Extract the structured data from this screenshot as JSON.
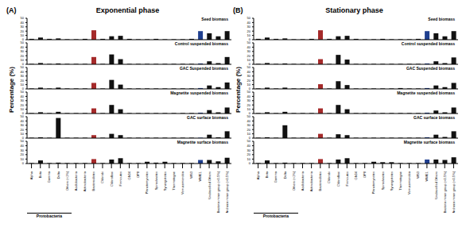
{
  "chart_data": [
    {
      "type": "bar",
      "label": "(A)",
      "title": "Exponential phase",
      "ylabel": "Percentage (%)",
      "annotation": "Protobacteria",
      "categories": [
        "Alpha",
        "Beta",
        "Gamma",
        "Delta",
        "Others (<1%)",
        "Acidobacteria",
        "Actinobacteria",
        "Bacteroidetes",
        "Chlorobi",
        "Chloroflexi",
        "Firmicutes",
        "GN04",
        "OP8",
        "Planctomycetes",
        "Spirochaetes",
        "Synergistetes",
        "Thermotogae",
        "Verrucomicrobia",
        "WS3",
        "WWE1",
        "Unclassified Others",
        "Bacteria minor group (<0.5%)",
        "Archaea minor group (<0.5%)"
      ],
      "colors": [
        "#111111",
        "#111111",
        "#111111",
        "#111111",
        "#111111",
        "#111111",
        "#111111",
        "#a52a2a",
        "#111111",
        "#111111",
        "#111111",
        "#111111",
        "#111111",
        "#111111",
        "#111111",
        "#111111",
        "#111111",
        "#111111",
        "#111111",
        "#1f3f8f",
        "#111111",
        "#111111",
        "#111111"
      ],
      "ylim": [
        0,
        50
      ],
      "yticks": [
        0,
        10,
        20,
        30,
        40,
        50
      ],
      "series": [
        {
          "name": "Seed biomass",
          "values": [
            2,
            5,
            2,
            3,
            1,
            1,
            2,
            22,
            2,
            8,
            9,
            2,
            1,
            1,
            2,
            1,
            1,
            1,
            2,
            20,
            15,
            8,
            20
          ]
        },
        {
          "name": "Control  suspended biomass",
          "values": [
            1,
            3,
            1,
            2,
            1,
            1,
            1,
            17,
            1,
            23,
            12,
            1,
            1,
            1,
            1,
            1,
            1,
            1,
            1,
            2,
            7,
            3,
            17
          ]
        },
        {
          "name": "GAC Suspended biomass",
          "values": [
            1,
            3,
            1,
            3,
            1,
            1,
            1,
            14,
            1,
            21,
            10,
            1,
            1,
            1,
            1,
            1,
            1,
            1,
            1,
            2,
            8,
            4,
            15
          ]
        },
        {
          "name": "Magnetite suspended biomass",
          "values": [
            1,
            3,
            1,
            4,
            1,
            1,
            1,
            12,
            1,
            20,
            10,
            1,
            1,
            1,
            1,
            1,
            1,
            1,
            1,
            2,
            8,
            3,
            14
          ]
        },
        {
          "name": "GAC surface biomass",
          "values": [
            1,
            2,
            1,
            47,
            1,
            1,
            1,
            7,
            1,
            10,
            7,
            1,
            1,
            1,
            1,
            1,
            1,
            1,
            1,
            1,
            8,
            2,
            16
          ]
        },
        {
          "name": "Magnetite surface biomass",
          "values": [
            1,
            7,
            1,
            2,
            1,
            1,
            1,
            10,
            1,
            9,
            12,
            1,
            1,
            4,
            2,
            4,
            1,
            1,
            1,
            8,
            8,
            5,
            13
          ]
        }
      ]
    },
    {
      "type": "bar",
      "label": "(B)",
      "title": "Stationary phase",
      "ylabel": "Percentage (%)",
      "annotation": "Protobacteria",
      "categories": [
        "Alpha",
        "Beta",
        "Gamma",
        "Delta",
        "Others (<1%)",
        "Acidobacteria",
        "Actinobacteria",
        "Bacteroidetes",
        "Chlorobi",
        "Chloroflexi",
        "Firmicutes",
        "GN04",
        "OP8",
        "Planctomycetes",
        "Spirochaetes",
        "Synergistetes",
        "Thermotogae",
        "Verrucomicrobia",
        "WS3",
        "WWE1",
        "Unclassified Others",
        "Bacteria minor group (<0.5%)",
        "Archaea minor group (<0.5%)"
      ],
      "colors": [
        "#111111",
        "#111111",
        "#111111",
        "#111111",
        "#111111",
        "#111111",
        "#111111",
        "#a52a2a",
        "#111111",
        "#111111",
        "#111111",
        "#111111",
        "#111111",
        "#111111",
        "#111111",
        "#111111",
        "#111111",
        "#111111",
        "#111111",
        "#1f3f8f",
        "#111111",
        "#111111",
        "#111111"
      ],
      "ylim": [
        0,
        50
      ],
      "yticks": [
        0,
        10,
        20,
        30,
        40,
        50
      ],
      "series": [
        {
          "name": "Seed biomass",
          "values": [
            2,
            5,
            2,
            3,
            1,
            1,
            2,
            22,
            2,
            8,
            9,
            2,
            1,
            1,
            2,
            1,
            1,
            1,
            2,
            20,
            15,
            8,
            20
          ]
        },
        {
          "name": "Control  suspended biomass",
          "values": [
            1,
            3,
            1,
            2,
            1,
            1,
            1,
            12,
            1,
            22,
            11,
            1,
            1,
            1,
            1,
            1,
            1,
            1,
            1,
            2,
            7,
            3,
            16
          ]
        },
        {
          "name": "GAC Suspended biomass",
          "values": [
            1,
            3,
            1,
            3,
            1,
            1,
            1,
            11,
            1,
            18,
            9,
            1,
            1,
            1,
            1,
            1,
            2,
            1,
            1,
            2,
            8,
            4,
            14
          ]
        },
        {
          "name": "Magnetite suspended biomass",
          "values": [
            1,
            3,
            1,
            4,
            1,
            1,
            1,
            12,
            1,
            20,
            10,
            1,
            1,
            1,
            1,
            1,
            1,
            1,
            1,
            2,
            7,
            3,
            14
          ]
        },
        {
          "name": "GAC surface biomass",
          "values": [
            1,
            2,
            1,
            30,
            1,
            1,
            1,
            10,
            1,
            9,
            7,
            1,
            1,
            1,
            1,
            1,
            1,
            1,
            1,
            2,
            8,
            3,
            16
          ]
        },
        {
          "name": "Magnetite surface biomass",
          "values": [
            1,
            7,
            1,
            2,
            1,
            1,
            1,
            10,
            1,
            9,
            12,
            1,
            1,
            4,
            3,
            3,
            1,
            1,
            1,
            9,
            9,
            8,
            14
          ]
        }
      ]
    }
  ]
}
